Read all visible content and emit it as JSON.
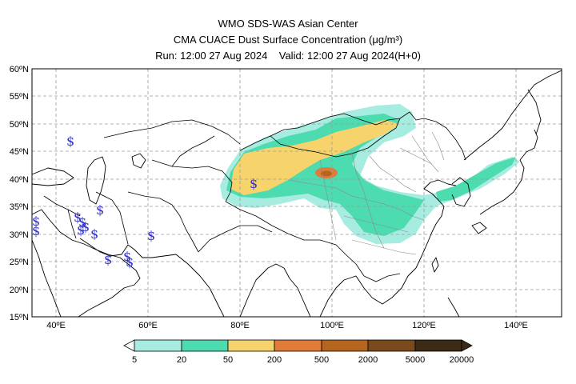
{
  "header": {
    "line1": "WMO SDS-WAS Asian Center",
    "line2": "CMA CUACE Dust Surface Concentration (μg/m³)",
    "line3": "Run: 12:00 27 Aug 2024    Valid: 12:00 27 Aug 2024(H+0)"
  },
  "map": {
    "lon_range": [
      35,
      150
    ],
    "lat_range": [
      15,
      60
    ],
    "lat_ticks": [
      "15ºN",
      "20ºN",
      "25ºN",
      "30ºN",
      "35ºN",
      "40ºN",
      "45ºN",
      "50ºN",
      "55ºN",
      "60ºN"
    ],
    "lon_ticks": [
      "40ºE",
      "60ºE",
      "80ºE",
      "100ºE",
      "120ºE",
      "140ºE"
    ],
    "dust_symbol": "$",
    "dust_symbol_color": "#3333cc"
  },
  "colorbar": {
    "labels": [
      "5",
      "20",
      "50",
      "200",
      "500",
      "2000",
      "5000",
      "20000"
    ],
    "colors": [
      "#a6ece0",
      "#4ddbb0",
      "#f7d36b",
      "#e07b39",
      "#b5651d",
      "#7a4a1e",
      "#3b2a15"
    ]
  }
}
